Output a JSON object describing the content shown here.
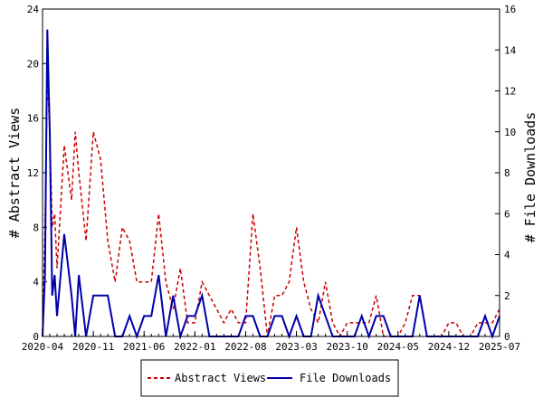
{
  "chart_data": {
    "type": "line",
    "ylabel_left": "# Abstract Views",
    "ylabel_right": "# File Downloads",
    "ylim_left": [
      0,
      24
    ],
    "ylim_right": [
      0,
      16
    ],
    "yticks_left": [
      0,
      4,
      8,
      12,
      16,
      20,
      24
    ],
    "yticks_right": [
      0,
      2,
      4,
      6,
      8,
      10,
      12,
      14,
      16
    ],
    "x_start": "2020-04",
    "x_end": "2025-07",
    "xtick_labels": [
      "2020-04",
      "2020-11",
      "2021-06",
      "2022-01",
      "2022-08",
      "2023-03",
      "2023-10",
      "2024-05",
      "2024-12",
      "2025-07"
    ],
    "legend_position": "bottom-center",
    "series": [
      {
        "name": "Abstract Views",
        "axis": "left",
        "color": "#cc0000",
        "style": "dashed",
        "x": [
          "2020-04",
          "2020-04",
          "2020-04",
          "2020-05",
          "2020-05",
          "2020-05",
          "2020-06",
          "2020-07",
          "2020-08",
          "2020-08",
          "2020-09",
          "2020-10",
          "2020-11",
          "2020-12",
          "2021-01",
          "2021-02",
          "2021-03",
          "2021-04",
          "2021-05",
          "2021-06",
          "2021-07",
          "2021-08",
          "2021-09",
          "2021-10",
          "2021-11",
          "2021-12",
          "2022-01",
          "2022-02",
          "2022-03",
          "2022-04",
          "2022-05",
          "2022-06",
          "2022-07",
          "2022-08",
          "2022-09",
          "2022-10",
          "2022-11",
          "2022-12",
          "2023-01",
          "2023-02",
          "2023-03",
          "2023-04",
          "2023-05",
          "2023-06",
          "2023-07",
          "2023-08",
          "2023-09",
          "2023-10",
          "2023-11",
          "2023-12",
          "2024-01",
          "2024-02",
          "2024-03",
          "2024-04",
          "2024-05",
          "2024-06",
          "2024-07",
          "2024-08",
          "2024-09",
          "2024-10",
          "2024-11",
          "2024-12",
          "2025-01",
          "2025-02",
          "2025-03",
          "2025-04",
          "2025-05",
          "2025-06",
          "2025-07"
        ],
        "values": [
          0,
          8,
          19,
          15,
          8,
          9,
          5,
          14,
          10,
          15,
          12,
          7,
          15,
          13,
          7,
          4,
          8,
          7,
          4,
          4,
          4,
          9,
          4,
          2,
          5,
          1,
          1,
          4,
          3,
          2,
          1,
          2,
          1,
          1,
          9,
          5,
          0,
          3,
          3,
          4,
          8,
          4,
          2,
          1,
          4,
          1,
          0,
          1,
          1,
          1,
          1,
          3,
          0,
          0,
          0,
          1,
          3,
          3,
          0,
          0,
          0,
          1,
          1,
          0,
          0,
          1,
          1,
          1,
          2
        ]
      },
      {
        "name": "File Downloads",
        "axis": "right",
        "color": "#0000aa",
        "style": "solid",
        "x": [
          "2020-04",
          "2020-04",
          "2020-04",
          "2020-05",
          "2020-05",
          "2020-05",
          "2020-06",
          "2020-07",
          "2020-08",
          "2020-08",
          "2020-09",
          "2020-10",
          "2020-11",
          "2020-12",
          "2021-01",
          "2021-02",
          "2021-03",
          "2021-04",
          "2021-05",
          "2021-06",
          "2021-07",
          "2021-08",
          "2021-09",
          "2021-10",
          "2021-11",
          "2021-12",
          "2022-01",
          "2022-02",
          "2022-03",
          "2022-04",
          "2022-05",
          "2022-06",
          "2022-07",
          "2022-08",
          "2022-09",
          "2022-10",
          "2022-11",
          "2022-12",
          "2023-01",
          "2023-02",
          "2023-03",
          "2023-04",
          "2023-05",
          "2023-06",
          "2023-07",
          "2023-08",
          "2023-09",
          "2023-10",
          "2023-11",
          "2023-12",
          "2024-01",
          "2024-02",
          "2024-03",
          "2024-04",
          "2024-05",
          "2024-06",
          "2024-07",
          "2024-08",
          "2024-09",
          "2024-10",
          "2024-11",
          "2024-12",
          "2025-01",
          "2025-02",
          "2025-03",
          "2025-04",
          "2025-05",
          "2025-06",
          "2025-07"
        ],
        "values": [
          0,
          3,
          15,
          10,
          2,
          3,
          1,
          5,
          2,
          0,
          3,
          0,
          2,
          2,
          2,
          0,
          0,
          1,
          0,
          1,
          1,
          3,
          0,
          2,
          0,
          1,
          1,
          2,
          0,
          0,
          0,
          0,
          0,
          1,
          1,
          0,
          0,
          1,
          1,
          0,
          1,
          0,
          0,
          2,
          1,
          0,
          0,
          0,
          0,
          1,
          0,
          1,
          1,
          0,
          0,
          0,
          0,
          2,
          0,
          0,
          0,
          0,
          0,
          0,
          0,
          0,
          1,
          0,
          1
        ]
      }
    ]
  }
}
